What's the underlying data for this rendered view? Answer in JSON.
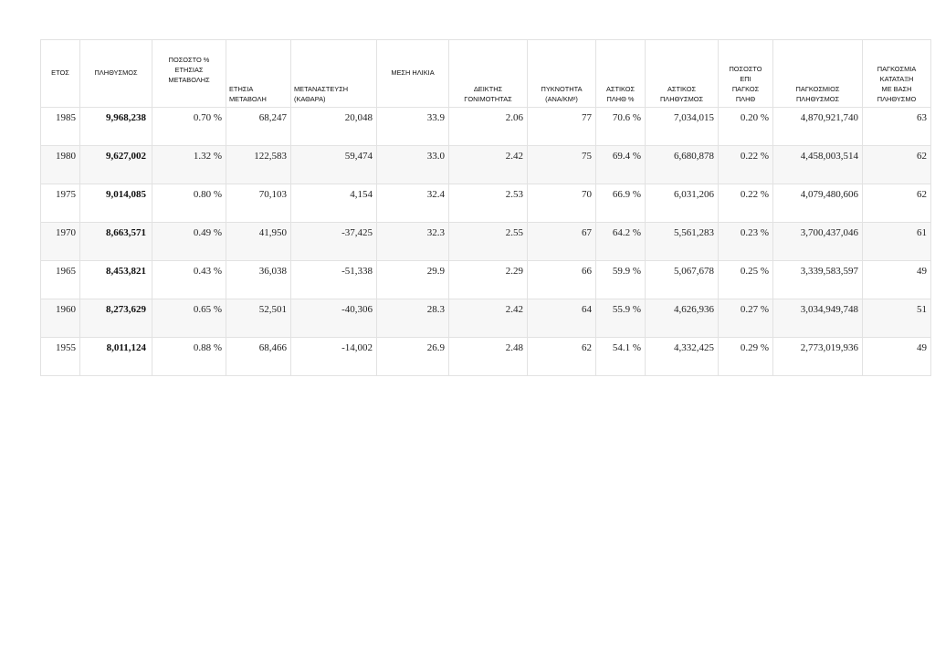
{
  "table": {
    "headers": [
      "ΕΤΟΣ",
      "ΠΛΗΘΥΣΜΟΣ",
      "ΠΟΣΟΣΤΟ %\nΕΤΗΣΙΑΣ\nΜΕΤΑΒΟΛΗΣ",
      "ΕΤΗΣΙΑ\nΜΕΤΑΒΟΛΗ",
      "ΜΕΤΑΝΑΣΤΕΥΣΗ\n(ΚΑΘΑΡΑ)",
      "ΜΕΣΗ ΗΛΙΚΙΑ",
      "ΔΕΙΚΤΗΣ\nΓΟΝΙΜΟΤΗΤΑΣ",
      "ΠΥΚΝΟΤΗΤΑ\n(ΑΝΑ/Km²)",
      "ΑΣΤΙΚΟΣ\nΠΛΗΘ %",
      "ΑΣΤΙΚΟΣ\nΠΛΗΘΥΣΜΟΣ",
      "ΠΟΣΟΣΤΟ\nΕΠΙ\nΠΑΓΚΟΣ\nΠΛΗΘ",
      "ΠΑΓΚΟΣΜΙΟΣ\nΠΛΗΘΥΣΜΟΣ",
      "ΠΑΓΚΟΣΜΙΑ\nΚΑΤΑΤΑΞΗ\nΜΕ ΒΑΣΗ\nΠΛΗΘΥΣΜΟ"
    ],
    "rows": [
      [
        "1985",
        "9,968,238",
        "0.70 %",
        "68,247",
        "20,048",
        "33.9",
        "2.06",
        "77",
        "70.6 %",
        "7,034,015",
        "0.20 %",
        "4,870,921,740",
        "63"
      ],
      [
        "1980",
        "9,627,002",
        "1.32 %",
        "122,583",
        "59,474",
        "33.0",
        "2.42",
        "75",
        "69.4 %",
        "6,680,878",
        "0.22 %",
        "4,458,003,514",
        "62"
      ],
      [
        "1975",
        "9,014,085",
        "0.80 %",
        "70,103",
        "4,154",
        "32.4",
        "2.53",
        "70",
        "66.9 %",
        "6,031,206",
        "0.22 %",
        "4,079,480,606",
        "62"
      ],
      [
        "1970",
        "8,663,571",
        "0.49 %",
        "41,950",
        "-37,425",
        "32.3",
        "2.55",
        "67",
        "64.2 %",
        "5,561,283",
        "0.23 %",
        "3,700,437,046",
        "61"
      ],
      [
        "1965",
        "8,453,821",
        "0.43 %",
        "36,038",
        "-51,338",
        "29.9",
        "2.29",
        "66",
        "59.9 %",
        "5,067,678",
        "0.25 %",
        "3,339,583,597",
        "49"
      ],
      [
        "1960",
        "8,273,629",
        "0.65 %",
        "52,501",
        "-40,306",
        "28.3",
        "2.42",
        "64",
        "55.9 %",
        "4,626,936",
        "0.27 %",
        "3,034,949,748",
        "51"
      ],
      [
        "1955",
        "8,011,124",
        "0.88 %",
        "68,466",
        "-14,002",
        "26.9",
        "2.48",
        "62",
        "54.1 %",
        "4,332,425",
        "0.29 %",
        "2,773,019,936",
        "49"
      ]
    ]
  }
}
